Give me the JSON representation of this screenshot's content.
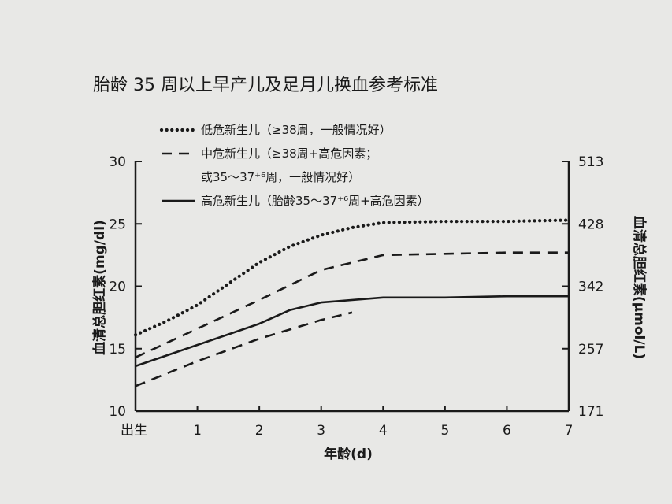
{
  "chart_data": {
    "type": "line",
    "title": "胎龄 35 周以上早产儿及足月儿换血参考标准",
    "xlabel": "年龄(d)",
    "ylabel": "血清总胆红素(mg/dl)",
    "ylabel_right": "血清总胆红素(μmol/L)",
    "x_tick_labels": [
      "出生",
      "1",
      "2",
      "3",
      "4",
      "5",
      "6",
      "7"
    ],
    "x_ticks": [
      0,
      1,
      2,
      3,
      4,
      5,
      6,
      7
    ],
    "xlim": [
      0,
      7
    ],
    "ylim": [
      10,
      30
    ],
    "y_ticks": [
      10,
      15,
      20,
      25,
      30
    ],
    "y_tick_labels": [
      "10",
      "15",
      "20",
      "25",
      "30"
    ],
    "y_right_tick_labels": [
      "171",
      "257",
      "342",
      "428",
      "513"
    ],
    "grid": false,
    "legend_position": "top-left",
    "legend_lines": [
      {
        "text": "低危新生儿（≥38周，一般情况好）",
        "style": "dotted"
      },
      {
        "text": "中危新生儿（≥38周+高危因素；",
        "style": "dashed"
      },
      {
        "text": "或35～37⁺⁶周，一般情况好）",
        "style": "none"
      },
      {
        "text": "高危新生儿（胎龄35～37⁺⁶周+高危因素）",
        "style": "solid"
      }
    ],
    "series": [
      {
        "name": "低危新生儿（≥38周，一般情况好）",
        "style": "dotted",
        "x": [
          0,
          0.5,
          1,
          1.5,
          2,
          2.5,
          3,
          3.5,
          4,
          5,
          6,
          7
        ],
        "y": [
          16.1,
          17.2,
          18.5,
          20.2,
          21.9,
          23.2,
          24.1,
          24.7,
          25.1,
          25.2,
          25.2,
          25.3
        ]
      },
      {
        "name": "中危新生儿（≥38周+高危因素；或35～37⁺⁶周，一般情况好）",
        "style": "dashed",
        "x": [
          0,
          1,
          2,
          3,
          4,
          5,
          6,
          7
        ],
        "y": [
          14.3,
          16.6,
          18.9,
          21.3,
          22.5,
          22.6,
          22.7,
          22.7
        ]
      },
      {
        "name": "高危新生儿（胎龄35～37⁺⁶周+高危因素）",
        "style": "solid",
        "x": [
          0,
          1,
          2,
          2.5,
          3,
          4,
          5,
          6,
          7
        ],
        "y": [
          13.6,
          15.3,
          17.0,
          18.1,
          18.7,
          19.1,
          19.1,
          19.2,
          19.2
        ]
      },
      {
        "name": "",
        "style": "dashed",
        "x": [
          0,
          1,
          2,
          3,
          3.5
        ],
        "y": [
          12.0,
          14.0,
          15.8,
          17.3,
          17.9
        ]
      }
    ]
  },
  "colors": {
    "ink": "#1a1a1a",
    "paper": "#e8e8e6"
  }
}
